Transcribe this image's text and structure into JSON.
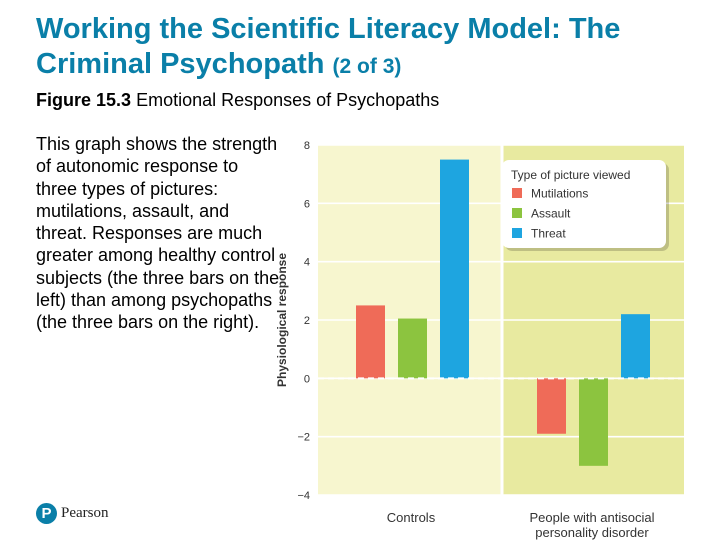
{
  "slide": {
    "title_main": "Working the Scientific Literacy Model: The Criminal Psychopath",
    "title_suffix": "(2 of 3)",
    "figure_label": "Figure 15.3",
    "figure_caption": "Emotional Responses of Psychopaths",
    "body": "This graph shows the strength of autonomic response to three types of pictures: mutilations, assault, and threat. Responses are much greater among healthy control subjects (the three bars on the left) than among psychopaths (the three bars on the right).",
    "brand": "Pearson",
    "brand_mark": "P"
  },
  "colors": {
    "title": "#0a7fa8",
    "panel_controls": "#f7f6cf",
    "panel_antisocial": "#e8eaa0",
    "mutilations": "#ef6b58",
    "assault": "#8cc43f",
    "threat": "#1ea5e0"
  },
  "chart_data": {
    "type": "bar",
    "title": "",
    "xlabel": "",
    "ylabel": "Physiological response",
    "ylim": [
      -4,
      8
    ],
    "yticks": [
      8,
      6,
      4,
      2,
      0,
      -2,
      -4
    ],
    "ytick_labels": [
      "8",
      "6",
      "4",
      "2",
      "0",
      "−2",
      "−4"
    ],
    "categories": [
      "Controls",
      "People with antisocial personality disorder"
    ],
    "category_lines": [
      [
        "Controls"
      ],
      [
        "People with antisocial",
        "personality disorder"
      ]
    ],
    "legend_title": "Type of picture viewed",
    "legend_position": "top-right",
    "series": [
      {
        "name": "Mutilations",
        "color": "#ef6b58",
        "values": [
          2.5,
          -1.9
        ]
      },
      {
        "name": "Assault",
        "color": "#8cc43f",
        "values": [
          2.05,
          -3.0
        ]
      },
      {
        "name": "Threat",
        "color": "#1ea5e0",
        "values": [
          7.5,
          2.2
        ]
      }
    ],
    "grid": true
  }
}
